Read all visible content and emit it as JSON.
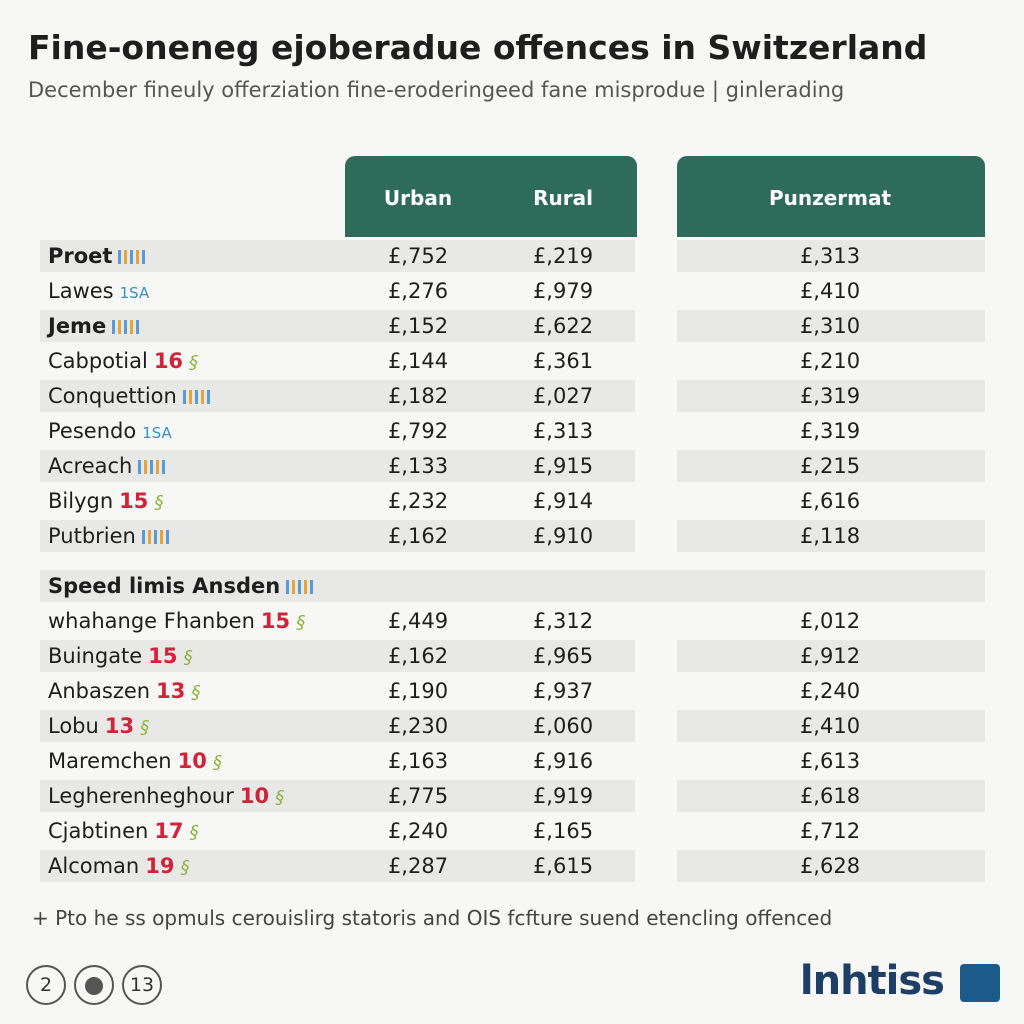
{
  "header": {
    "title": "Fine-oneneg ejoberadue offences in Switzerland",
    "subtitle": "December fineuly offerziation fine-eroderingeed fane misprodue | ginlerading"
  },
  "table": {
    "columns": [
      "Urban",
      "Rural",
      "Punzermat"
    ],
    "groups": [
      {
        "title": null,
        "rows": [
          {
            "label": "Proet",
            "tag": null,
            "values": [
              "£,752",
              "£,219",
              "£,313"
            ]
          },
          {
            "label": "Lawes",
            "tag": "1SA",
            "values": [
              "£,276",
              "£,979",
              "£,410"
            ]
          },
          {
            "label": "Jeme",
            "tag": null,
            "values": [
              "£,152",
              "£,622",
              "£,310"
            ]
          },
          {
            "label": "Cabpotial",
            "tag": "16",
            "values": [
              "£,144",
              "£,361",
              "£,210"
            ]
          },
          {
            "label": "Conquettion",
            "tag": null,
            "values": [
              "£,182",
              "£,027",
              "£,319"
            ]
          },
          {
            "label": "Pesendo",
            "tag": "1SA",
            "values": [
              "£,792",
              "£,313",
              "£,319"
            ]
          },
          {
            "label": "Acreach",
            "tag": null,
            "values": [
              "£,133",
              "£,915",
              "£,215"
            ]
          },
          {
            "label": "Bilygn",
            "tag": "15",
            "values": [
              "£,232",
              "£,914",
              "£,616"
            ]
          },
          {
            "label": "Putbrien",
            "tag": null,
            "values": [
              "£,162",
              "£,910",
              "£,118"
            ]
          }
        ]
      },
      {
        "title": "Speed limis Ansden",
        "rows": [
          {
            "label": "whahange Fhanben",
            "tag": "15",
            "values": [
              "£,449",
              "£,312",
              "£,012"
            ]
          },
          {
            "label": "Buingate",
            "tag": "15",
            "values": [
              "£,162",
              "£,965",
              "£,912"
            ]
          },
          {
            "label": "Anbaszen",
            "tag": "13",
            "values": [
              "£,190",
              "£,937",
              "£,240"
            ]
          },
          {
            "label": "Lobu",
            "tag": "13",
            "values": [
              "£,230",
              "£,060",
              "£,410"
            ]
          },
          {
            "label": "Maremchen",
            "tag": "10",
            "values": [
              "£,163",
              "£,916",
              "£,613"
            ]
          },
          {
            "label": "Legherenheghour",
            "tag": "10",
            "values": [
              "£,775",
              "£,919",
              "£,618"
            ]
          },
          {
            "label": "Cjabtinen",
            "tag": "17",
            "values": [
              "£,240",
              "£,165",
              "£,712"
            ]
          },
          {
            "label": "Alcoman",
            "tag": "19",
            "values": [
              "£,287",
              "£,615",
              "£,628"
            ]
          }
        ]
      }
    ]
  },
  "footer": {
    "note": "+ Pto he ss opmuls cerouislirg statoris and OIS fcfture suend etencling offenced",
    "pages": [
      "2",
      "13"
    ],
    "logo": "lnhtiss"
  }
}
